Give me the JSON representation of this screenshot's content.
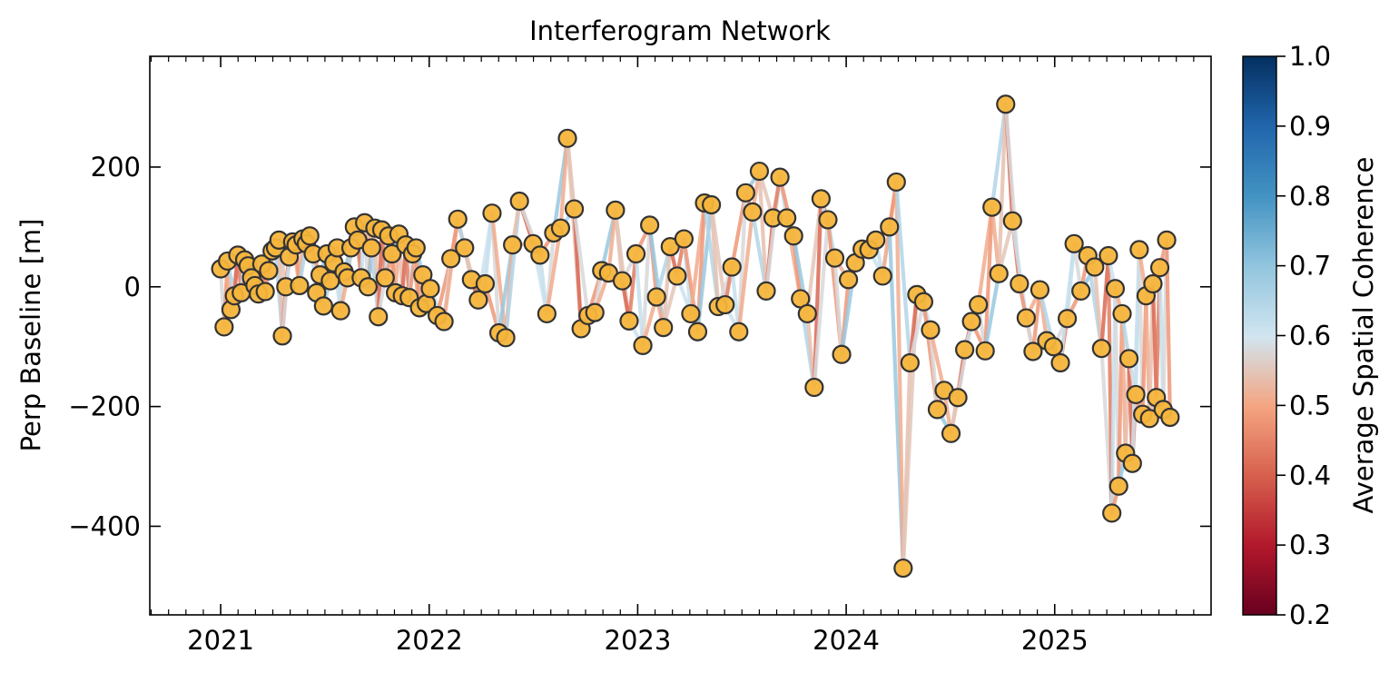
{
  "chart_data": {
    "type": "scatter",
    "title": "Interferogram Network",
    "xlabel": "",
    "ylabel": "Perp Baseline [m]",
    "xlim": [
      2020.66,
      2025.75
    ],
    "ylim": [
      -548,
      385
    ],
    "xticks": [
      2021,
      2022,
      2023,
      2024,
      2025
    ],
    "xtick_labels": [
      "2021",
      "2022",
      "2023",
      "2024",
      "2025"
    ],
    "yticks": [
      -400,
      -200,
      0,
      200
    ],
    "ytick_labels": [
      "−400",
      "−200",
      "0",
      "200"
    ],
    "grid": false,
    "marker_color": "#f5b53b",
    "marker_edge_color": "#333333",
    "colorbar": {
      "label": "Average Spatial Coherence",
      "min": 0.2,
      "max": 1.0,
      "ticks": [
        0.2,
        0.3,
        0.4,
        0.5,
        0.6,
        0.7,
        0.8,
        0.9,
        1.0
      ],
      "tick_labels": [
        "0.2",
        "0.3",
        "0.4",
        "0.5",
        "0.6",
        "0.7",
        "0.8",
        "0.9",
        "1.0"
      ],
      "colors_low_to_high": [
        "#67001f",
        "#b2182b",
        "#d6604d",
        "#f4a582",
        "#d1e5f0",
        "#92c5de",
        "#4393c3",
        "#2166ac",
        "#053061"
      ]
    },
    "acquisitions": [
      {
        "date": "2021-01-01",
        "bperp": 30
      },
      {
        "date": "2021-01-07",
        "bperp": -67
      },
      {
        "date": "2021-01-13",
        "bperp": 43
      },
      {
        "date": "2021-01-19",
        "bperp": -38
      },
      {
        "date": "2021-01-25",
        "bperp": -15
      },
      {
        "date": "2021-01-31",
        "bperp": 53
      },
      {
        "date": "2021-02-06",
        "bperp": -10
      },
      {
        "date": "2021-02-12",
        "bperp": 45
      },
      {
        "date": "2021-02-18",
        "bperp": 35
      },
      {
        "date": "2021-02-24",
        "bperp": 15
      },
      {
        "date": "2021-03-02",
        "bperp": 2
      },
      {
        "date": "2021-03-08",
        "bperp": -12
      },
      {
        "date": "2021-03-14",
        "bperp": 38
      },
      {
        "date": "2021-03-20",
        "bperp": -8
      },
      {
        "date": "2021-03-26",
        "bperp": 27
      },
      {
        "date": "2021-04-01",
        "bperp": 60
      },
      {
        "date": "2021-04-07",
        "bperp": 65
      },
      {
        "date": "2021-04-13",
        "bperp": 78
      },
      {
        "date": "2021-04-19",
        "bperp": -82
      },
      {
        "date": "2021-04-25",
        "bperp": 0
      },
      {
        "date": "2021-05-01",
        "bperp": 50
      },
      {
        "date": "2021-05-07",
        "bperp": 75
      },
      {
        "date": "2021-05-13",
        "bperp": 70
      },
      {
        "date": "2021-05-19",
        "bperp": 2
      },
      {
        "date": "2021-05-25",
        "bperp": 80
      },
      {
        "date": "2021-05-31",
        "bperp": 72
      },
      {
        "date": "2021-06-06",
        "bperp": 85
      },
      {
        "date": "2021-06-12",
        "bperp": 55
      },
      {
        "date": "2021-06-18",
        "bperp": -10
      },
      {
        "date": "2021-06-24",
        "bperp": 20
      },
      {
        "date": "2021-06-30",
        "bperp": -32
      },
      {
        "date": "2021-07-06",
        "bperp": 55
      },
      {
        "date": "2021-07-12",
        "bperp": 10
      },
      {
        "date": "2021-07-18",
        "bperp": 40
      },
      {
        "date": "2021-07-24",
        "bperp": 65
      },
      {
        "date": "2021-07-30",
        "bperp": -40
      },
      {
        "date": "2021-08-05",
        "bperp": 25
      },
      {
        "date": "2021-08-11",
        "bperp": 15
      },
      {
        "date": "2021-08-17",
        "bperp": 65
      },
      {
        "date": "2021-08-23",
        "bperp": 100
      },
      {
        "date": "2021-08-29",
        "bperp": 78
      },
      {
        "date": "2021-09-04",
        "bperp": 15
      },
      {
        "date": "2021-09-10",
        "bperp": 107
      },
      {
        "date": "2021-09-16",
        "bperp": 0
      },
      {
        "date": "2021-09-22",
        "bperp": 65
      },
      {
        "date": "2021-09-28",
        "bperp": 98
      },
      {
        "date": "2021-10-04",
        "bperp": -50
      },
      {
        "date": "2021-10-10",
        "bperp": 95
      },
      {
        "date": "2021-10-16",
        "bperp": 15
      },
      {
        "date": "2021-10-22",
        "bperp": 85
      },
      {
        "date": "2021-10-28",
        "bperp": 55
      },
      {
        "date": "2021-11-03",
        "bperp": -10
      },
      {
        "date": "2021-11-09",
        "bperp": 88
      },
      {
        "date": "2021-11-15",
        "bperp": -15
      },
      {
        "date": "2021-11-21",
        "bperp": 70
      },
      {
        "date": "2021-11-27",
        "bperp": -18
      },
      {
        "date": "2021-12-03",
        "bperp": 55
      },
      {
        "date": "2021-12-09",
        "bperp": 65
      },
      {
        "date": "2021-12-15",
        "bperp": -35
      },
      {
        "date": "2021-12-21",
        "bperp": 20
      },
      {
        "date": "2021-12-27",
        "bperp": -28
      },
      {
        "date": "2022-01-03",
        "bperp": -3
      },
      {
        "date": "2022-01-15",
        "bperp": -48
      },
      {
        "date": "2022-01-27",
        "bperp": -58
      },
      {
        "date": "2022-02-08",
        "bperp": 47
      },
      {
        "date": "2022-02-20",
        "bperp": 113
      },
      {
        "date": "2022-03-04",
        "bperp": 65
      },
      {
        "date": "2022-03-16",
        "bperp": 12
      },
      {
        "date": "2022-03-28",
        "bperp": -22
      },
      {
        "date": "2022-04-09",
        "bperp": 5
      },
      {
        "date": "2022-04-21",
        "bperp": 123
      },
      {
        "date": "2022-05-03",
        "bperp": -77
      },
      {
        "date": "2022-05-15",
        "bperp": -85
      },
      {
        "date": "2022-05-27",
        "bperp": 70
      },
      {
        "date": "2022-06-08",
        "bperp": 143
      },
      {
        "date": "2022-07-02",
        "bperp": 72
      },
      {
        "date": "2022-07-14",
        "bperp": 53
      },
      {
        "date": "2022-07-26",
        "bperp": -45
      },
      {
        "date": "2022-08-07",
        "bperp": 90
      },
      {
        "date": "2022-08-19",
        "bperp": 98
      },
      {
        "date": "2022-08-31",
        "bperp": 248
      },
      {
        "date": "2022-09-12",
        "bperp": 130
      },
      {
        "date": "2022-09-24",
        "bperp": -70
      },
      {
        "date": "2022-10-06",
        "bperp": -48
      },
      {
        "date": "2022-10-18",
        "bperp": -43
      },
      {
        "date": "2022-10-30",
        "bperp": 27
      },
      {
        "date": "2022-11-11",
        "bperp": 23
      },
      {
        "date": "2022-11-23",
        "bperp": 128
      },
      {
        "date": "2022-12-05",
        "bperp": 10
      },
      {
        "date": "2022-12-17",
        "bperp": -57
      },
      {
        "date": "2022-12-29",
        "bperp": 55
      },
      {
        "date": "2023-01-10",
        "bperp": -98
      },
      {
        "date": "2023-01-22",
        "bperp": 103
      },
      {
        "date": "2023-02-03",
        "bperp": -17
      },
      {
        "date": "2023-02-15",
        "bperp": -68
      },
      {
        "date": "2023-02-27",
        "bperp": 67
      },
      {
        "date": "2023-03-11",
        "bperp": 18
      },
      {
        "date": "2023-03-23",
        "bperp": 80
      },
      {
        "date": "2023-04-04",
        "bperp": -45
      },
      {
        "date": "2023-04-16",
        "bperp": -75
      },
      {
        "date": "2023-04-28",
        "bperp": 140
      },
      {
        "date": "2023-05-10",
        "bperp": 137
      },
      {
        "date": "2023-05-22",
        "bperp": -33
      },
      {
        "date": "2023-06-03",
        "bperp": -30
      },
      {
        "date": "2023-06-15",
        "bperp": 33
      },
      {
        "date": "2023-06-27",
        "bperp": -75
      },
      {
        "date": "2023-07-09",
        "bperp": 157
      },
      {
        "date": "2023-07-21",
        "bperp": 125
      },
      {
        "date": "2023-08-02",
        "bperp": 193
      },
      {
        "date": "2023-08-14",
        "bperp": -7
      },
      {
        "date": "2023-08-26",
        "bperp": 115
      },
      {
        "date": "2023-09-07",
        "bperp": 183
      },
      {
        "date": "2023-09-19",
        "bperp": 115
      },
      {
        "date": "2023-10-01",
        "bperp": 85
      },
      {
        "date": "2023-10-13",
        "bperp": -20
      },
      {
        "date": "2023-10-25",
        "bperp": -45
      },
      {
        "date": "2023-11-06",
        "bperp": -168
      },
      {
        "date": "2023-11-18",
        "bperp": 147
      },
      {
        "date": "2023-11-30",
        "bperp": 112
      },
      {
        "date": "2023-12-12",
        "bperp": 48
      },
      {
        "date": "2023-12-24",
        "bperp": -113
      },
      {
        "date": "2024-01-05",
        "bperp": 12
      },
      {
        "date": "2024-01-17",
        "bperp": 40
      },
      {
        "date": "2024-01-29",
        "bperp": 63
      },
      {
        "date": "2024-02-10",
        "bperp": 62
      },
      {
        "date": "2024-02-22",
        "bperp": 78
      },
      {
        "date": "2024-03-05",
        "bperp": 18
      },
      {
        "date": "2024-03-17",
        "bperp": 100
      },
      {
        "date": "2024-03-29",
        "bperp": 175
      },
      {
        "date": "2024-04-10",
        "bperp": -470
      },
      {
        "date": "2024-04-22",
        "bperp": -127
      },
      {
        "date": "2024-05-04",
        "bperp": -13
      },
      {
        "date": "2024-05-16",
        "bperp": -25
      },
      {
        "date": "2024-05-28",
        "bperp": -72
      },
      {
        "date": "2024-06-09",
        "bperp": -205
      },
      {
        "date": "2024-06-21",
        "bperp": -173
      },
      {
        "date": "2024-07-03",
        "bperp": -245
      },
      {
        "date": "2024-07-15",
        "bperp": -185
      },
      {
        "date": "2024-07-27",
        "bperp": -105
      },
      {
        "date": "2024-08-08",
        "bperp": -58
      },
      {
        "date": "2024-08-20",
        "bperp": -30
      },
      {
        "date": "2024-09-01",
        "bperp": -107
      },
      {
        "date": "2024-09-13",
        "bperp": 133
      },
      {
        "date": "2024-09-25",
        "bperp": 22
      },
      {
        "date": "2024-10-07",
        "bperp": 305
      },
      {
        "date": "2024-10-19",
        "bperp": 110
      },
      {
        "date": "2024-10-31",
        "bperp": 5
      },
      {
        "date": "2024-11-12",
        "bperp": -52
      },
      {
        "date": "2024-11-24",
        "bperp": -108
      },
      {
        "date": "2024-12-06",
        "bperp": -5
      },
      {
        "date": "2024-12-18",
        "bperp": -90
      },
      {
        "date": "2024-12-30",
        "bperp": -100
      },
      {
        "date": "2025-01-11",
        "bperp": -127
      },
      {
        "date": "2025-01-23",
        "bperp": -53
      },
      {
        "date": "2025-02-04",
        "bperp": 72
      },
      {
        "date": "2025-02-16",
        "bperp": -7
      },
      {
        "date": "2025-02-28",
        "bperp": 52
      },
      {
        "date": "2025-03-12",
        "bperp": 33
      },
      {
        "date": "2025-03-24",
        "bperp": -103
      },
      {
        "date": "2025-04-05",
        "bperp": 52
      },
      {
        "date": "2025-04-11",
        "bperp": -378
      },
      {
        "date": "2025-04-17",
        "bperp": -3
      },
      {
        "date": "2025-04-23",
        "bperp": -333
      },
      {
        "date": "2025-04-29",
        "bperp": -45
      },
      {
        "date": "2025-05-05",
        "bperp": -278
      },
      {
        "date": "2025-05-11",
        "bperp": -120
      },
      {
        "date": "2025-05-17",
        "bperp": -295
      },
      {
        "date": "2025-05-23",
        "bperp": -180
      },
      {
        "date": "2025-05-29",
        "bperp": 62
      },
      {
        "date": "2025-06-04",
        "bperp": -213
      },
      {
        "date": "2025-06-10",
        "bperp": -15
      },
      {
        "date": "2025-06-16",
        "bperp": -220
      },
      {
        "date": "2025-06-22",
        "bperp": 5
      },
      {
        "date": "2025-06-28",
        "bperp": -185
      },
      {
        "date": "2025-07-04",
        "bperp": 32
      },
      {
        "date": "2025-07-10",
        "bperp": -205
      },
      {
        "date": "2025-07-16",
        "bperp": 78
      },
      {
        "date": "2025-07-22",
        "bperp": -218
      }
    ]
  }
}
